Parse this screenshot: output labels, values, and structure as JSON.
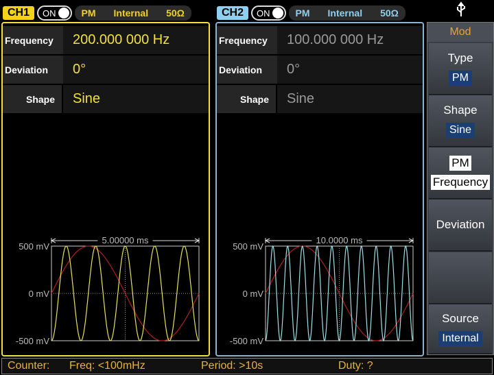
{
  "ch1": {
    "label": "CH1",
    "state": "ON",
    "mode": "PM",
    "source": "Internal",
    "load": "50Ω",
    "params": [
      {
        "label": "Frequency",
        "value": "200.000 000 Hz"
      },
      {
        "label": "Deviation",
        "value": "0°"
      },
      {
        "label": "Shape",
        "value": "Sine"
      }
    ],
    "scope": {
      "time": "5.00000 ms",
      "levels": [
        "500 mV",
        "0 mV",
        "-500 mV"
      ]
    }
  },
  "ch2": {
    "label": "CH2",
    "state": "ON",
    "mode": "PM",
    "source": "Internal",
    "load": "50Ω",
    "params": [
      {
        "label": "Frequency",
        "value": "100.000 000 Hz"
      },
      {
        "label": "Deviation",
        "value": "0°"
      },
      {
        "label": "Shape",
        "value": "Sine"
      }
    ],
    "scope": {
      "time": "10.0000 ms",
      "levels": [
        "500 mV",
        "0 mV",
        "-500 mV"
      ]
    }
  },
  "menu": {
    "title": "Mod",
    "items": [
      {
        "label": "Type",
        "value": "PM"
      },
      {
        "label": "Shape",
        "value": "Sine"
      },
      {
        "label": "PM",
        "value": "Frequency"
      },
      {
        "label": "Deviation"
      },
      {},
      {
        "label": "Source",
        "value": "Internal"
      }
    ]
  },
  "status": {
    "counter": "Counter:",
    "freq": "Freq: <100mHz",
    "period": "Period: >10s",
    "duty": "Duty: ?"
  }
}
